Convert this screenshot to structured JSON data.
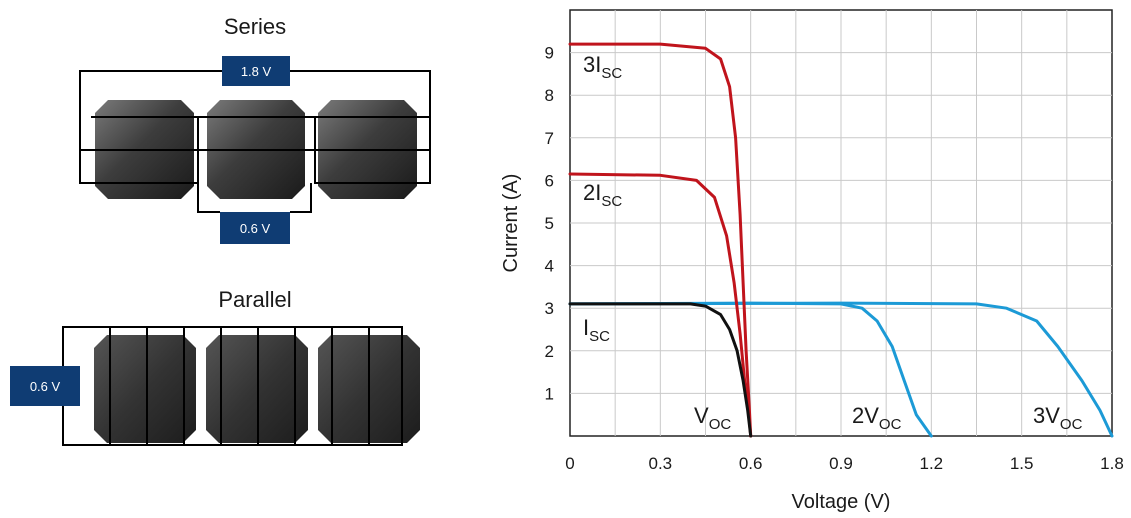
{
  "diagram": {
    "series_title": "Series",
    "parallel_title": "Parallel",
    "series_voltage": "1.8 V",
    "cell_voltage": "0.6 V",
    "parallel_voltage": "0.6 V",
    "badge_color": "#0f3c73"
  },
  "chart_data": {
    "type": "line",
    "xlabel": "Voltage (V)",
    "ylabel": "Current (A)",
    "xlim": [
      0,
      1.8
    ],
    "ylim": [
      0,
      10
    ],
    "xticks": [
      "0",
      "0.3",
      "0.6",
      "0.9",
      "1.2",
      "1.5",
      "1.8"
    ],
    "yticks": [
      "1",
      "2",
      "3",
      "4",
      "5",
      "6",
      "7",
      "8",
      "9"
    ],
    "grid": true,
    "series": [
      {
        "label_main": "3I",
        "label_sub": "SC",
        "color": "#c0141c",
        "points": [
          [
            0,
            9.2
          ],
          [
            0.3,
            9.2
          ],
          [
            0.45,
            9.1
          ],
          [
            0.5,
            8.85
          ],
          [
            0.53,
            8.2
          ],
          [
            0.55,
            7.0
          ],
          [
            0.565,
            5.2
          ],
          [
            0.575,
            3.6
          ],
          [
            0.585,
            2.0
          ],
          [
            0.595,
            0.7
          ],
          [
            0.6,
            0
          ]
        ]
      },
      {
        "label_main": "2I",
        "label_sub": "SC",
        "color": "#c0141c",
        "points": [
          [
            0,
            6.15
          ],
          [
            0.3,
            6.12
          ],
          [
            0.42,
            6.0
          ],
          [
            0.48,
            5.6
          ],
          [
            0.52,
            4.7
          ],
          [
            0.545,
            3.6
          ],
          [
            0.565,
            2.4
          ],
          [
            0.58,
            1.3
          ],
          [
            0.595,
            0.4
          ],
          [
            0.6,
            0
          ]
        ]
      },
      {
        "label_main": "I",
        "label_sub": "SC",
        "color": "#111111",
        "points": [
          [
            0,
            3.1
          ],
          [
            0.4,
            3.1
          ],
          [
            0.45,
            3.05
          ],
          [
            0.5,
            2.85
          ],
          [
            0.53,
            2.5
          ],
          [
            0.555,
            2.0
          ],
          [
            0.575,
            1.3
          ],
          [
            0.59,
            0.6
          ],
          [
            0.6,
            0
          ]
        ]
      },
      {
        "label_main": "2V",
        "label_sub": "OC",
        "color": "#1c9ad6",
        "points": [
          [
            0,
            3.1
          ],
          [
            0.6,
            3.12
          ],
          [
            0.9,
            3.1
          ],
          [
            0.97,
            3.0
          ],
          [
            1.02,
            2.7
          ],
          [
            1.07,
            2.1
          ],
          [
            1.11,
            1.3
          ],
          [
            1.15,
            0.5
          ],
          [
            1.2,
            0
          ]
        ]
      },
      {
        "label_main": "3V",
        "label_sub": "OC",
        "color": "#1c9ad6",
        "points": [
          [
            0,
            3.1
          ],
          [
            0.9,
            3.12
          ],
          [
            1.35,
            3.1
          ],
          [
            1.45,
            3.0
          ],
          [
            1.55,
            2.7
          ],
          [
            1.62,
            2.1
          ],
          [
            1.7,
            1.3
          ],
          [
            1.76,
            0.6
          ],
          [
            1.8,
            0
          ]
        ]
      },
      {
        "label_main": "V",
        "label_sub": "OC",
        "color": "#111111",
        "points": []
      }
    ]
  }
}
